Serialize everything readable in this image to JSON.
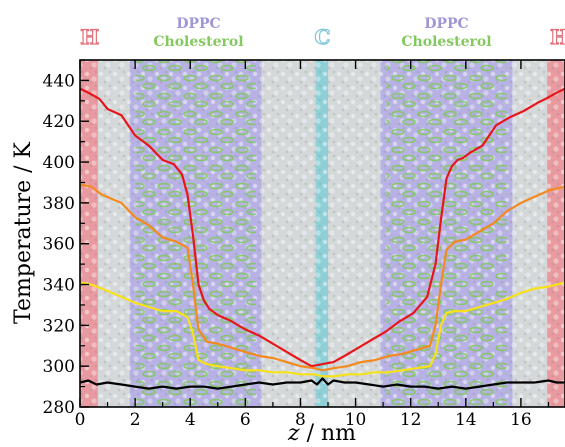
{
  "chart_data": {
    "type": "line",
    "xlabel_var": "z",
    "xlabel_unit": " / nm",
    "ylabel": "Temperature / K",
    "xlim": [
      0,
      17.6
    ],
    "ylim": [
      280,
      450
    ],
    "x_ticks": [
      0,
      2,
      4,
      6,
      8,
      10,
      12,
      14,
      16
    ],
    "y_ticks": [
      280,
      300,
      320,
      340,
      360,
      380,
      400,
      420,
      440
    ],
    "grid": false,
    "legend": "none",
    "region_labels": [
      {
        "id": "H-left",
        "lines": [
          "H"
        ],
        "color": "#e3717a",
        "x": 0.35
      },
      {
        "id": "dppc-left",
        "lines": [
          "DPPC",
          "Cholesterol"
        ],
        "colors": [
          "#9e96d6",
          "#84c95f"
        ],
        "x": 4.3
      },
      {
        "id": "C",
        "lines": [
          "C"
        ],
        "color": "#7fc6d8",
        "x": 8.8
      },
      {
        "id": "dppc-right",
        "lines": [
          "DPPC",
          "Cholesterol"
        ],
        "colors": [
          "#9e96d6",
          "#84c95f"
        ],
        "x": 13.3
      },
      {
        "id": "H-right",
        "lines": [
          "H"
        ],
        "color": "#e3717a",
        "x": 17.4
      }
    ],
    "background_bands": [
      {
        "name": "heat-source-left",
        "x": [
          0,
          0.65
        ],
        "color": "#e89aa0"
      },
      {
        "name": "water-left",
        "x": [
          0.65,
          1.8
        ],
        "color": "#d4d8d8"
      },
      {
        "name": "dppc-chol-left",
        "x": [
          1.8,
          6.6
        ],
        "color": "#b7b2e3"
      },
      {
        "name": "water-center-left",
        "x": [
          6.6,
          8.55
        ],
        "color": "#d4d8d8"
      },
      {
        "name": "heat-sink-center",
        "x": [
          8.55,
          9.0
        ],
        "color": "#8fd0d8"
      },
      {
        "name": "water-center-right",
        "x": [
          9.0,
          10.9
        ],
        "color": "#d4d8d8"
      },
      {
        "name": "dppc-chol-right",
        "x": [
          10.9,
          15.7
        ],
        "color": "#b7b2e3"
      },
      {
        "name": "water-right",
        "x": [
          15.7,
          16.95
        ],
        "color": "#d4d8d8"
      },
      {
        "name": "heat-source-right",
        "x": [
          16.95,
          17.6
        ],
        "color": "#e89aa0"
      }
    ],
    "series": [
      {
        "color": "#e8161b",
        "x": [
          0,
          0.3,
          0.7,
          1.0,
          1.5,
          2.0,
          2.5,
          3.0,
          3.4,
          3.7,
          3.9,
          4.1,
          4.3,
          4.5,
          4.7,
          5.0,
          5.5,
          6.0,
          6.5,
          7.0,
          7.5,
          8.0,
          8.4,
          8.8,
          9.2,
          9.6,
          10.1,
          10.6,
          11.1,
          11.6,
          12.1,
          12.6,
          12.9,
          13.1,
          13.3,
          13.5,
          13.7,
          13.9,
          14.2,
          14.6,
          15.1,
          15.6,
          16.1,
          16.6,
          16.9,
          17.3,
          17.6
        ],
        "y": [
          436,
          434,
          431,
          426,
          423,
          413,
          408,
          401,
          399,
          394,
          384,
          364,
          340,
          332,
          328,
          325,
          322,
          318,
          315,
          311,
          307,
          303,
          300,
          301,
          302,
          305,
          309,
          313,
          317,
          322,
          326,
          334,
          350,
          372,
          392,
          398,
          401,
          402,
          405,
          408,
          418,
          422,
          425,
          429,
          431,
          434,
          436
        ]
      },
      {
        "color": "#f4891f",
        "x": [
          0,
          0.4,
          0.8,
          1.5,
          2.0,
          2.5,
          3.0,
          3.5,
          3.9,
          4.1,
          4.3,
          4.6,
          5.0,
          5.5,
          6.0,
          6.5,
          7.0,
          7.5,
          8.0,
          8.5,
          8.8,
          9.2,
          9.7,
          10.2,
          10.7,
          11.2,
          11.7,
          12.2,
          12.7,
          12.9,
          13.1,
          13.3,
          13.6,
          14.0,
          14.5,
          15.0,
          15.5,
          16.0,
          16.5,
          17.0,
          17.6
        ],
        "y": [
          389,
          388,
          384,
          380,
          373,
          369,
          363,
          361,
          358,
          340,
          318,
          312,
          311,
          309,
          307,
          305,
          304,
          302,
          300,
          299,
          298,
          299,
          300,
          302,
          303,
          305,
          306,
          308,
          310,
          320,
          340,
          357,
          361,
          362,
          366,
          370,
          376,
          380,
          383,
          386,
          388
        ]
      },
      {
        "color": "#f7e21a",
        "x": [
          0,
          0.4,
          0.8,
          1.5,
          2.0,
          2.5,
          3.0,
          3.5,
          3.9,
          4.1,
          4.3,
          4.6,
          5.0,
          5.5,
          6.0,
          6.5,
          7.0,
          7.5,
          8.0,
          8.5,
          8.8,
          9.2,
          9.7,
          10.2,
          10.7,
          11.2,
          11.7,
          12.2,
          12.7,
          12.9,
          13.1,
          13.3,
          13.6,
          14.0,
          14.5,
          15.0,
          15.5,
          16.0,
          16.5,
          17.0,
          17.6
        ],
        "y": [
          341,
          340,
          338,
          334,
          331,
          329,
          327,
          327,
          324,
          316,
          303,
          301,
          300,
          299,
          298,
          298,
          297,
          297,
          296,
          296,
          295,
          295,
          296,
          296,
          297,
          297,
          298,
          299,
          300,
          306,
          320,
          326,
          327,
          327,
          329,
          331,
          333,
          336,
          338,
          339,
          341
        ]
      },
      {
        "color": "#000000",
        "x": [
          0,
          0.3,
          0.6,
          1.0,
          1.5,
          2.0,
          2.5,
          3.0,
          3.5,
          4.0,
          4.5,
          5.0,
          5.5,
          6.0,
          6.5,
          7.0,
          7.5,
          8.0,
          8.4,
          8.6,
          8.8,
          9.0,
          9.2,
          9.6,
          10.0,
          10.5,
          11.0,
          11.5,
          12.0,
          12.5,
          13.0,
          13.5,
          14.0,
          14.5,
          15.0,
          15.5,
          16.0,
          16.5,
          17.0,
          17.3,
          17.6
        ],
        "y": [
          292,
          293,
          291,
          292,
          291,
          290,
          289,
          290,
          289,
          290,
          290,
          289,
          290,
          291,
          292,
          291,
          292,
          292,
          293,
          291,
          294,
          291,
          293,
          292,
          292,
          291,
          290,
          291,
          290,
          290,
          289,
          290,
          289,
          290,
          291,
          292,
          292,
          292,
          293,
          292,
          292
        ]
      }
    ]
  }
}
